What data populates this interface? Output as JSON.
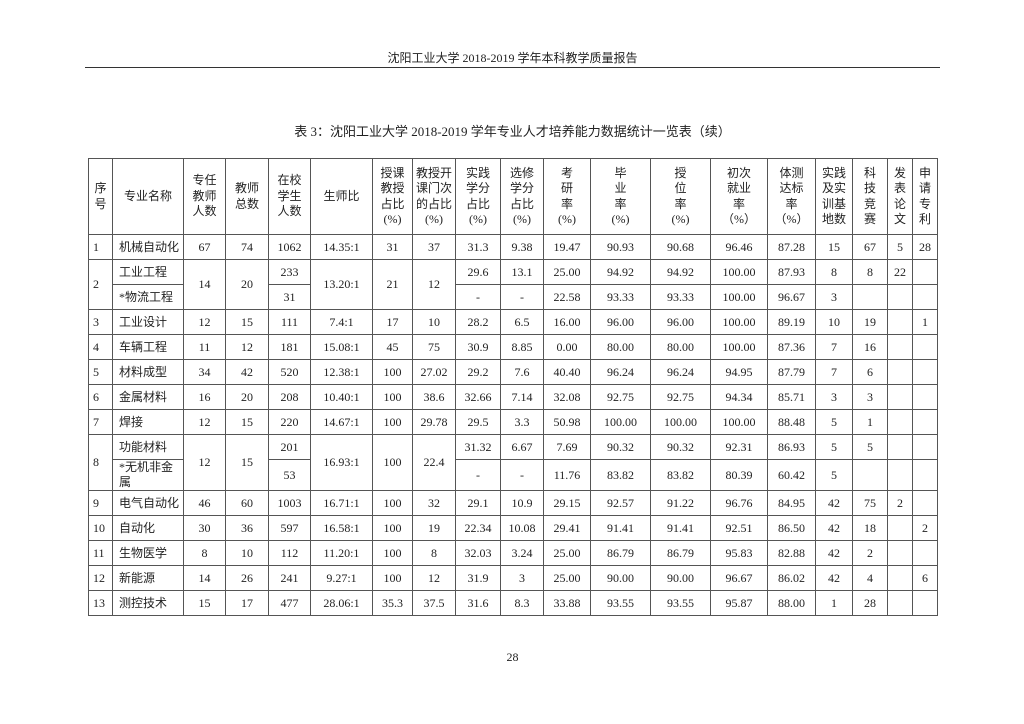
{
  "running_head": "沈阳工业大学 2018-2019 学年本科教学质量报告",
  "title": "表 3：沈阳工业大学 2018-2019 学年专业人才培养能力数据统计一览表（续）",
  "page_number": "28",
  "table": {
    "headers": [
      "序\n号",
      "专业名称",
      "专任\n教师\n人数",
      "教师\n总数",
      "在校\n学生\n人数",
      "生师比",
      "授课\n教授\n占比\n(%)",
      "教授开\n课门次\n的占比\n(%)",
      "实践\n学分\n占比\n(%)",
      "选修\n学分\n占比\n(%)",
      "考\n研\n率\n(%)",
      "毕\n业\n率\n(%)",
      "授\n位\n率\n(%)",
      "初次\n就业\n率\n（%）",
      "体测\n达标\n率\n（%）",
      "实践\n及实\n训基\n地数",
      "科\n技\n竞\n赛",
      "发\n表\n论\n文",
      "申\n请\n专\n利"
    ],
    "rows": [
      {
        "no": "1",
        "teachers": "67",
        "total": "74",
        "ratio": "14.35:1",
        "prof": "31",
        "course": "37",
        "subs": [
          {
            "name": "机械自动化",
            "students": "1062",
            "practice": "31.3",
            "elective": "9.38",
            "kaoyan": "19.47",
            "grad": "90.93",
            "degree": "90.68",
            "employ": "96.46",
            "fitness": "87.28",
            "bases": "15",
            "contest": "67",
            "papers": "5",
            "patents": "28"
          }
        ]
      },
      {
        "no": "2",
        "teachers": "14",
        "total": "20",
        "ratio": "13.20:1",
        "prof": "21",
        "course": "12",
        "subs": [
          {
            "name": "工业工程",
            "students": "233",
            "practice": "29.6",
            "elective": "13.1",
            "kaoyan": "25.00",
            "grad": "94.92",
            "degree": "94.92",
            "employ": "100.00",
            "fitness": "87.93",
            "bases": "8",
            "contest": "8",
            "papers": "22",
            "patents": ""
          },
          {
            "name": "*物流工程",
            "students": "31",
            "practice": "-",
            "elective": "-",
            "kaoyan": "22.58",
            "grad": "93.33",
            "degree": "93.33",
            "employ": "100.00",
            "fitness": "96.67",
            "bases": "3",
            "contest": "",
            "papers": "",
            "patents": ""
          }
        ]
      },
      {
        "no": "3",
        "teachers": "12",
        "total": "15",
        "ratio": "7.4:1",
        "prof": "17",
        "course": "10",
        "subs": [
          {
            "name": "工业设计",
            "students": "111",
            "practice": "28.2",
            "elective": "6.5",
            "kaoyan": "16.00",
            "grad": "96.00",
            "degree": "96.00",
            "employ": "100.00",
            "fitness": "89.19",
            "bases": "10",
            "contest": "19",
            "papers": "",
            "patents": "1"
          }
        ]
      },
      {
        "no": "4",
        "teachers": "11",
        "total": "12",
        "ratio": "15.08:1",
        "prof": "45",
        "course": "75",
        "subs": [
          {
            "name": "车辆工程",
            "students": "181",
            "practice": "30.9",
            "elective": "8.85",
            "kaoyan": "0.00",
            "grad": "80.00",
            "degree": "80.00",
            "employ": "100.00",
            "fitness": "87.36",
            "bases": "7",
            "contest": "16",
            "papers": "",
            "patents": ""
          }
        ]
      },
      {
        "no": "5",
        "teachers": "34",
        "total": "42",
        "ratio": "12.38:1",
        "prof": "100",
        "course": "27.02",
        "subs": [
          {
            "name": "材料成型",
            "students": "520",
            "practice": "29.2",
            "elective": "7.6",
            "kaoyan": "40.40",
            "grad": "96.24",
            "degree": "96.24",
            "employ": "94.95",
            "fitness": "87.79",
            "bases": "7",
            "contest": "6",
            "papers": "",
            "patents": ""
          }
        ]
      },
      {
        "no": "6",
        "teachers": "16",
        "total": "20",
        "ratio": "10.40:1",
        "prof": "100",
        "course": "38.6",
        "subs": [
          {
            "name": "金属材料",
            "students": "208",
            "practice": "32.66",
            "elective": "7.14",
            "kaoyan": "32.08",
            "grad": "92.75",
            "degree": "92.75",
            "employ": "94.34",
            "fitness": "85.71",
            "bases": "3",
            "contest": "3",
            "papers": "",
            "patents": ""
          }
        ]
      },
      {
        "no": "7",
        "teachers": "12",
        "total": "15",
        "ratio": "14.67:1",
        "prof": "100",
        "course": "29.78",
        "subs": [
          {
            "name": "焊接",
            "students": "220",
            "practice": "29.5",
            "elective": "3.3",
            "kaoyan": "50.98",
            "grad": "100.00",
            "degree": "100.00",
            "employ": "100.00",
            "fitness": "88.48",
            "bases": "5",
            "contest": "1",
            "papers": "",
            "patents": ""
          }
        ]
      },
      {
        "no": "8",
        "teachers": "12",
        "total": "15",
        "ratio": "16.93:1",
        "prof": "100",
        "course": "22.4",
        "subs": [
          {
            "name": "功能材料",
            "students": "201",
            "practice": "31.32",
            "elective": "6.67",
            "kaoyan": "7.69",
            "grad": "90.32",
            "degree": "90.32",
            "employ": "92.31",
            "fitness": "86.93",
            "bases": "5",
            "contest": "5",
            "papers": "",
            "patents": ""
          },
          {
            "name": "*无机非金属",
            "students": "53",
            "practice": "-",
            "elective": "-",
            "kaoyan": "11.76",
            "grad": "83.82",
            "degree": "83.82",
            "employ": "80.39",
            "fitness": "60.42",
            "bases": "5",
            "contest": "",
            "papers": "",
            "patents": ""
          }
        ]
      },
      {
        "no": "9",
        "teachers": "46",
        "total": "60",
        "ratio": "16.71:1",
        "prof": "100",
        "course": "32",
        "subs": [
          {
            "name": "电气自动化",
            "students": "1003",
            "practice": "29.1",
            "elective": "10.9",
            "kaoyan": "29.15",
            "grad": "92.57",
            "degree": "91.22",
            "employ": "96.76",
            "fitness": "84.95",
            "bases": "42",
            "contest": "75",
            "papers": "2",
            "patents": ""
          }
        ]
      },
      {
        "no": "10",
        "teachers": "30",
        "total": "36",
        "ratio": "16.58:1",
        "prof": "100",
        "course": "19",
        "subs": [
          {
            "name": "自动化",
            "students": "597",
            "practice": "22.34",
            "elective": "10.08",
            "kaoyan": "29.41",
            "grad": "91.41",
            "degree": "91.41",
            "employ": "92.51",
            "fitness": "86.50",
            "bases": "42",
            "contest": "18",
            "papers": "",
            "patents": "2"
          }
        ]
      },
      {
        "no": "11",
        "teachers": "8",
        "total": "10",
        "ratio": "11.20:1",
        "prof": "100",
        "course": "8",
        "subs": [
          {
            "name": "生物医学",
            "students": "112",
            "practice": "32.03",
            "elective": "3.24",
            "kaoyan": "25.00",
            "grad": "86.79",
            "degree": "86.79",
            "employ": "95.83",
            "fitness": "82.88",
            "bases": "42",
            "contest": "2",
            "papers": "",
            "patents": ""
          }
        ]
      },
      {
        "no": "12",
        "teachers": "14",
        "total": "26",
        "ratio": "9.27:1",
        "prof": "100",
        "course": "12",
        "subs": [
          {
            "name": "新能源",
            "students": "241",
            "practice": "31.9",
            "elective": "3",
            "kaoyan": "25.00",
            "grad": "90.00",
            "degree": "90.00",
            "employ": "96.67",
            "fitness": "86.02",
            "bases": "42",
            "contest": "4",
            "papers": "",
            "patents": "6"
          }
        ]
      },
      {
        "no": "13",
        "teachers": "15",
        "total": "17",
        "ratio": "28.06:1",
        "prof": "35.3",
        "course": "37.5",
        "subs": [
          {
            "name": "测控技术",
            "students": "477",
            "practice": "31.6",
            "elective": "8.3",
            "kaoyan": "33.88",
            "grad": "93.55",
            "degree": "93.55",
            "employ": "95.87",
            "fitness": "88.00",
            "bases": "1",
            "contest": "28",
            "papers": "",
            "patents": ""
          }
        ]
      }
    ]
  }
}
